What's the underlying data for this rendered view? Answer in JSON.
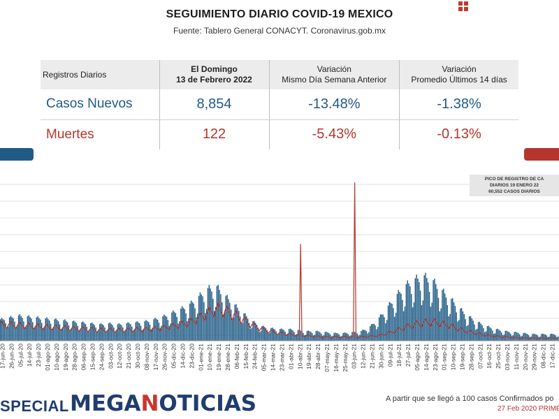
{
  "header": {
    "title": "SEGUIMIENTO DIARIO COVID-19 MEXICO",
    "source": "Fuente: Tablero General CONACYT. Coronavirus.gob.mx"
  },
  "table": {
    "col_label": "Registros Diarios",
    "col_date_line1": "El Domingo",
    "col_date_line2": "13 de Febrero 2022",
    "col_var1_line1": "Variación",
    "col_var1_line2": "Mismo Día Semana Anterior",
    "col_var2_line1": "Variación",
    "col_var2_line2": "Promedio Últimos 14 días",
    "rows": [
      {
        "label": "Casos Nuevos",
        "value": "8,854",
        "var_week": "-13.48%",
        "var_14d": "-1.38%"
      },
      {
        "label": "Muertes",
        "value": "122",
        "var_week": "-5.43%",
        "var_14d": "-0.13%"
      }
    ]
  },
  "colors": {
    "cases": "#1f5b86",
    "deaths": "#b5362c",
    "brand_dark": "#1f3d6e",
    "brand_accent": "#c8372d"
  },
  "chart_data": {
    "type": "bar",
    "series": [
      {
        "name": "Casos Nuevos",
        "type": "bar"
      },
      {
        "name": "Muertes",
        "type": "line"
      }
    ],
    "x_tick_labels": [
      "17-jun-20",
      "26-jun-20",
      "05-jul-20",
      "14-jul-20",
      "23-jul-20",
      "01-ago-20",
      "10-ago-20",
      "19-ago-20",
      "28-ago-20",
      "06-sep-20",
      "15-sep-20",
      "24-sep-20",
      "03-oct-20",
      "12-oct-20",
      "21-oct-20",
      "30-oct-20",
      "08-nov-20",
      "17-nov-20",
      "26-nov-20",
      "05-dic-20",
      "14-dic-20",
      "23-dic-20",
      "01-ene-21",
      "10-ene-21",
      "19-ene-21",
      "28-ene-21",
      "06-feb-21",
      "15-feb-21",
      "24-feb-21",
      "05-mar-21",
      "14-mar-21",
      "23-mar-21",
      "01-abr-21",
      "10-abr-21",
      "19-abr-21",
      "28-abr-21",
      "07-may-21",
      "16-may-21",
      "25-may-21",
      "03-jun-21",
      "12-jun-21",
      "21-jun-21",
      "30-jun-21",
      "09-jul-21",
      "18-jul-21",
      "27-jul-21",
      "05-ago-21",
      "14-ago-21",
      "23-ago-21",
      "01-sep-21",
      "10-sep-21",
      "19-sep-21",
      "28-sep-21",
      "07-oct-21",
      "16-oct-21",
      "25-oct-21",
      "03-nov-21",
      "11-nov-21",
      "20-nov-21",
      "29-nov-21",
      "08-dic-21",
      "17-dic-21"
    ],
    "cases_relative": [
      0.22,
      0.24,
      0.26,
      0.25,
      0.24,
      0.23,
      0.22,
      0.21,
      0.2,
      0.19,
      0.18,
      0.17,
      0.18,
      0.17,
      0.18,
      0.19,
      0.2,
      0.22,
      0.25,
      0.29,
      0.33,
      0.38,
      0.46,
      0.54,
      0.56,
      0.46,
      0.37,
      0.28,
      0.2,
      0.15,
      0.13,
      0.12,
      0.12,
      0.11,
      0.1,
      0.1,
      0.09,
      0.08,
      0.08,
      0.09,
      0.1,
      0.15,
      0.24,
      0.36,
      0.48,
      0.58,
      0.64,
      0.67,
      0.62,
      0.52,
      0.43,
      0.33,
      0.25,
      0.19,
      0.15,
      0.12,
      0.1,
      0.09,
      0.08,
      0.07,
      0.07,
      0.07
    ],
    "deaths_relative": [
      0.3,
      0.3,
      0.29,
      0.28,
      0.27,
      0.26,
      0.25,
      0.24,
      0.23,
      0.22,
      0.21,
      0.2,
      0.2,
      0.2,
      0.2,
      0.21,
      0.21,
      0.22,
      0.24,
      0.27,
      0.3,
      0.34,
      0.42,
      0.51,
      0.59,
      0.55,
      0.48,
      0.38,
      0.29,
      0.22,
      0.17,
      0.14,
      0.12,
      0.1,
      0.09,
      0.08,
      0.07,
      0.07,
      0.07,
      0.07,
      0.07,
      0.08,
      0.1,
      0.14,
      0.2,
      0.26,
      0.31,
      0.34,
      0.35,
      0.32,
      0.27,
      0.21,
      0.17,
      0.13,
      0.1,
      0.08,
      0.07,
      0.06,
      0.05,
      0.05,
      0.05,
      0.05
    ],
    "deaths_spikes": [
      {
        "x_label": "10-abr-21",
        "relative": 1.65
      },
      {
        "x_label": "03-jun-21",
        "relative": 2.7
      }
    ],
    "annotation_lines": [
      "PICO DE REGISTRO DE CA",
      "DIARIOS 19 ENERO 22",
      "60,552 CASOS DIARIOS"
    ],
    "grid": true
  },
  "footer": {
    "special": "SPECIAL",
    "brand_part1": "MEGA",
    "brand_part2": "N",
    "brand_part3": "OTICIAS",
    "note": "A partir que se llegó a 100 casos Confirmados po",
    "date": "27 Feb 2020 PRIME"
  }
}
